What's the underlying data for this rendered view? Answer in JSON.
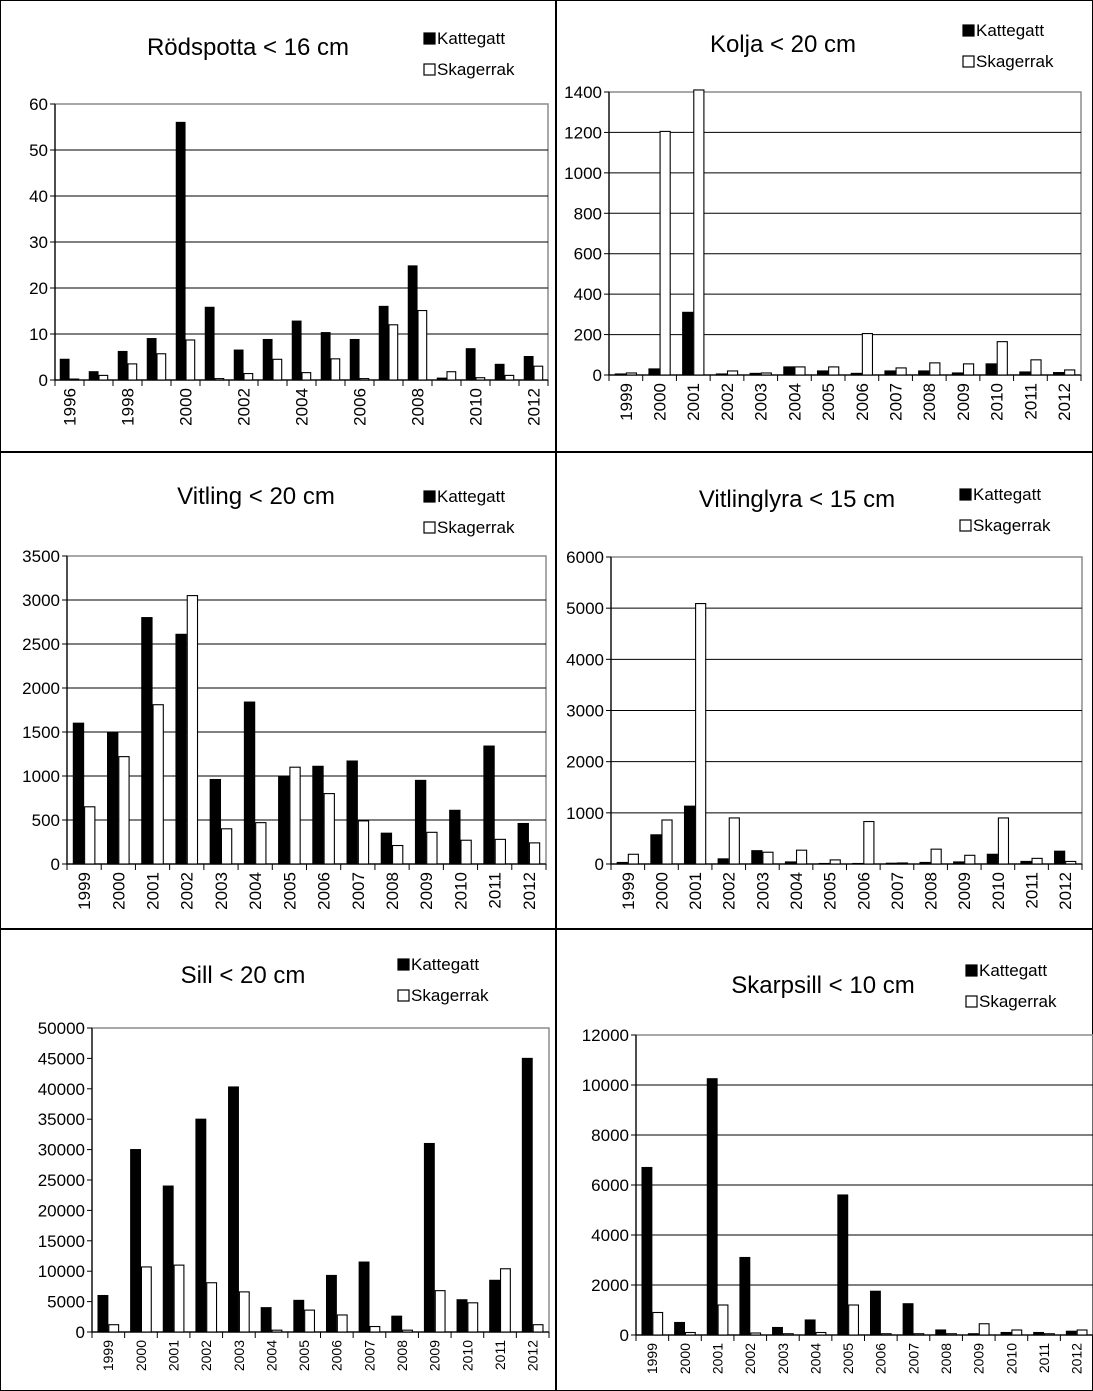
{
  "legend": {
    "k_label": "Kattegatt",
    "s_label": "Skagerrak"
  },
  "chart_data": [
    {
      "type": "bar",
      "title": "Rödspotta < 16 cm",
      "ylim": [
        0,
        60
      ],
      "yticks": [
        0,
        10,
        20,
        30,
        40,
        50,
        60
      ],
      "categories": [
        "1996",
        "1997",
        "1998",
        "1999",
        "2000",
        "2001",
        "2002",
        "2003",
        "2004",
        "2005",
        "2006",
        "2007",
        "2008",
        "2009",
        "2010",
        "2011",
        "2012"
      ],
      "xtick_labels": [
        "1996",
        "",
        "1998",
        "",
        "2000",
        "",
        "2002",
        "",
        "2004",
        "",
        "2006",
        "",
        "2008",
        "",
        "2010",
        "",
        "2012"
      ],
      "grid": true,
      "legend_position": "top-right",
      "series": [
        {
          "name": "Kattegatt",
          "color": "#000000",
          "values": [
            4.5,
            1.8,
            6.2,
            9.0,
            56.0,
            15.8,
            6.5,
            8.8,
            12.8,
            10.3,
            8.8,
            16.0,
            24.8,
            0.4,
            6.8,
            3.4,
            5.1
          ]
        },
        {
          "name": "Skagerrak",
          "color": "#ffffff",
          "values": [
            0.2,
            1.0,
            3.5,
            5.7,
            8.7,
            0.3,
            1.4,
            4.5,
            1.6,
            4.6,
            0.3,
            12.0,
            15.1,
            1.8,
            0.5,
            1.0,
            3.0
          ]
        }
      ]
    },
    {
      "type": "bar",
      "title": "Kolja < 20 cm",
      "ylim": [
        0,
        1400
      ],
      "yticks": [
        0,
        200,
        400,
        600,
        800,
        1000,
        1200,
        1400
      ],
      "categories": [
        "1999",
        "2000",
        "2001",
        "2002",
        "2003",
        "2004",
        "2005",
        "2006",
        "2007",
        "2008",
        "2009",
        "2010",
        "2011",
        "2012"
      ],
      "xtick_labels": [
        "1999",
        "2000",
        "2001",
        "2002",
        "2003",
        "2004",
        "2005",
        "2006",
        "2007",
        "2008",
        "2009",
        "2010",
        "2011",
        "2012"
      ],
      "grid": true,
      "legend_position": "top-right",
      "series": [
        {
          "name": "Kattegatt",
          "color": "#000000",
          "values": [
            5,
            30,
            310,
            5,
            8,
            40,
            20,
            8,
            20,
            20,
            10,
            55,
            15,
            12
          ]
        },
        {
          "name": "Skagerrak",
          "color": "#ffffff",
          "values": [
            10,
            1205,
            1410,
            20,
            10,
            40,
            40,
            205,
            35,
            60,
            55,
            165,
            75,
            25
          ]
        }
      ]
    },
    {
      "type": "bar",
      "title": "Vitling < 20 cm",
      "ylim": [
        0,
        3500
      ],
      "yticks": [
        0,
        500,
        1000,
        1500,
        2000,
        2500,
        3000,
        3500
      ],
      "categories": [
        "1999",
        "2000",
        "2001",
        "2002",
        "2003",
        "2004",
        "2005",
        "2006",
        "2007",
        "2008",
        "2009",
        "2010",
        "2011",
        "2012"
      ],
      "xtick_labels": [
        "1999",
        "2000",
        "2001",
        "2002",
        "2003",
        "2004",
        "2005",
        "2006",
        "2007",
        "2008",
        "2009",
        "2010",
        "2011",
        "2012"
      ],
      "grid": true,
      "legend_position": "top-right",
      "series": [
        {
          "name": "Kattegatt",
          "color": "#000000",
          "values": [
            1600,
            1490,
            2800,
            2610,
            960,
            1840,
            990,
            1110,
            1170,
            350,
            950,
            610,
            1340,
            460
          ]
        },
        {
          "name": "Skagerrak",
          "color": "#ffffff",
          "values": [
            650,
            1220,
            1810,
            3050,
            400,
            470,
            1100,
            800,
            490,
            210,
            360,
            270,
            280,
            240
          ]
        }
      ]
    },
    {
      "type": "bar",
      "title": "Vitlinglyra < 15 cm",
      "ylim": [
        0,
        6000
      ],
      "yticks": [
        0,
        1000,
        2000,
        3000,
        4000,
        5000,
        6000
      ],
      "categories": [
        "1999",
        "2000",
        "2001",
        "2002",
        "2003",
        "2004",
        "2005",
        "2006",
        "2007",
        "2008",
        "2009",
        "2010",
        "2011",
        "2012"
      ],
      "xtick_labels": [
        "1999",
        "2000",
        "2001",
        "2002",
        "2003",
        "2004",
        "2005",
        "2006",
        "2007",
        "2008",
        "2009",
        "2010",
        "2011",
        "2012"
      ],
      "grid": true,
      "legend_position": "top-right",
      "series": [
        {
          "name": "Kattegatt",
          "color": "#000000",
          "values": [
            30,
            570,
            1130,
            100,
            260,
            40,
            10,
            10,
            15,
            30,
            40,
            190,
            50,
            250
          ]
        },
        {
          "name": "Skagerrak",
          "color": "#ffffff",
          "values": [
            190,
            860,
            5090,
            900,
            230,
            270,
            80,
            830,
            20,
            290,
            170,
            900,
            110,
            50
          ]
        }
      ]
    },
    {
      "type": "bar",
      "title": "Sill < 20 cm",
      "ylim": [
        0,
        50000
      ],
      "yticks": [
        0,
        5000,
        10000,
        15000,
        20000,
        25000,
        30000,
        35000,
        40000,
        45000,
        50000
      ],
      "categories": [
        "1999",
        "2000",
        "2001",
        "2002",
        "2003",
        "2004",
        "2005",
        "2006",
        "2007",
        "2008",
        "2009",
        "2010",
        "2011",
        "2012"
      ],
      "xtick_labels": [
        "1999",
        "2000",
        "2001",
        "2002",
        "2003",
        "2004",
        "2005",
        "2006",
        "2007",
        "2008",
        "2009",
        "2010",
        "2011",
        "2012"
      ],
      "grid": false,
      "legend_position": "top-right",
      "series": [
        {
          "name": "Kattegatt",
          "color": "#000000",
          "values": [
            6000,
            30000,
            24000,
            35000,
            40300,
            4000,
            5200,
            9300,
            11500,
            2600,
            31000,
            5300,
            8500,
            45000
          ]
        },
        {
          "name": "Skagerrak",
          "color": "#ffffff",
          "values": [
            1200,
            10700,
            11000,
            8100,
            6600,
            300,
            3600,
            2800,
            900,
            300,
            6800,
            4800,
            10400,
            1200
          ]
        }
      ]
    },
    {
      "type": "bar",
      "title": "Skarpsill < 10 cm",
      "ylim": [
        0,
        12000
      ],
      "yticks": [
        0,
        2000,
        4000,
        6000,
        8000,
        10000,
        12000
      ],
      "categories": [
        "1999",
        "2000",
        "2001",
        "2002",
        "2003",
        "2004",
        "2005",
        "2006",
        "2007",
        "2008",
        "2009",
        "2010",
        "2011",
        "2012"
      ],
      "xtick_labels": [
        "1999",
        "2000",
        "2001",
        "2002",
        "2003",
        "2004",
        "2005",
        "2006",
        "2007",
        "2008",
        "2009",
        "2010",
        "2011",
        "2012"
      ],
      "grid": true,
      "legend_position": "top-right",
      "series": [
        {
          "name": "Kattegatt",
          "color": "#000000",
          "values": [
            6700,
            500,
            10250,
            3100,
            300,
            600,
            5600,
            1750,
            1250,
            200,
            50,
            100,
            100,
            150
          ]
        },
        {
          "name": "Skagerrak",
          "color": "#ffffff",
          "values": [
            900,
            100,
            1200,
            80,
            50,
            100,
            1200,
            50,
            50,
            50,
            450,
            200,
            50,
            200
          ]
        }
      ]
    }
  ]
}
